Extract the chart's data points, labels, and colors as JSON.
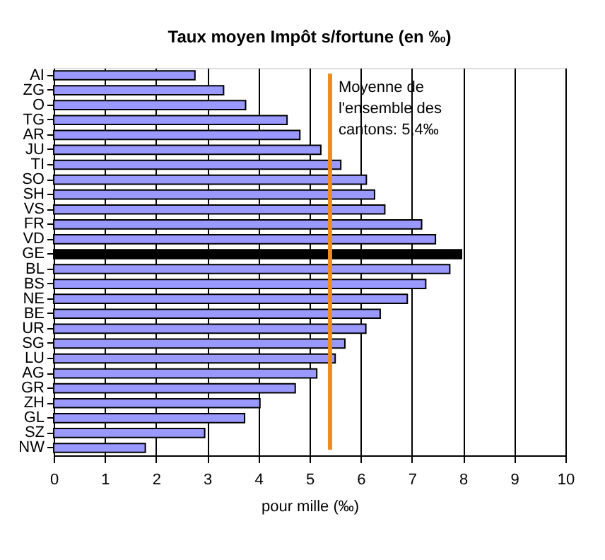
{
  "chart_data": {
    "type": "bar",
    "orientation": "horizontal",
    "title": "Taux moyen Impôt s/fortune  (en ‰)",
    "xlabel": "pour mille (‰)",
    "categories": [
      "AI",
      "ZG",
      "O",
      "TG",
      "AR",
      "JU",
      "TI",
      "SO",
      "SH",
      "VS",
      "FR",
      "VD",
      "GE",
      "BL",
      "BS",
      "NE",
      "BE",
      "UR",
      "SG",
      "LU",
      "AG",
      "GR",
      "ZH",
      "GL",
      "SZ",
      "NW"
    ],
    "values": [
      2.76,
      3.32,
      3.75,
      4.56,
      4.81,
      5.22,
      5.61,
      6.11,
      6.27,
      6.47,
      7.19,
      7.46,
      7.97,
      7.74,
      7.27,
      6.91,
      6.38,
      6.1,
      5.69,
      5.5,
      5.14,
      4.72,
      4.03,
      3.73,
      2.95,
      1.79
    ],
    "colors": [
      "#9999ff",
      "#9999ff",
      "#9999ff",
      "#9999ff",
      "#9999ff",
      "#9999ff",
      "#9999ff",
      "#9999ff",
      "#9999ff",
      "#9999ff",
      "#9999ff",
      "#9999ff",
      "#000000",
      "#9999ff",
      "#9999ff",
      "#9999ff",
      "#9999ff",
      "#9999ff",
      "#9999ff",
      "#9999ff",
      "#9999ff",
      "#9999ff",
      "#9999ff",
      "#9999ff",
      "#9999ff",
      "#9999ff"
    ],
    "xlim": [
      0,
      10
    ],
    "xticks": [
      0,
      1,
      2,
      3,
      4,
      5,
      6,
      7,
      8,
      9,
      10
    ],
    "grid": "x",
    "legend": "top right",
    "ref_lines": [
      {
        "axis": "x",
        "value": 5.4,
        "label": "Moyenne de l'ensemble des cantons: 5,4‰",
        "color": "#f08c1e"
      }
    ]
  }
}
